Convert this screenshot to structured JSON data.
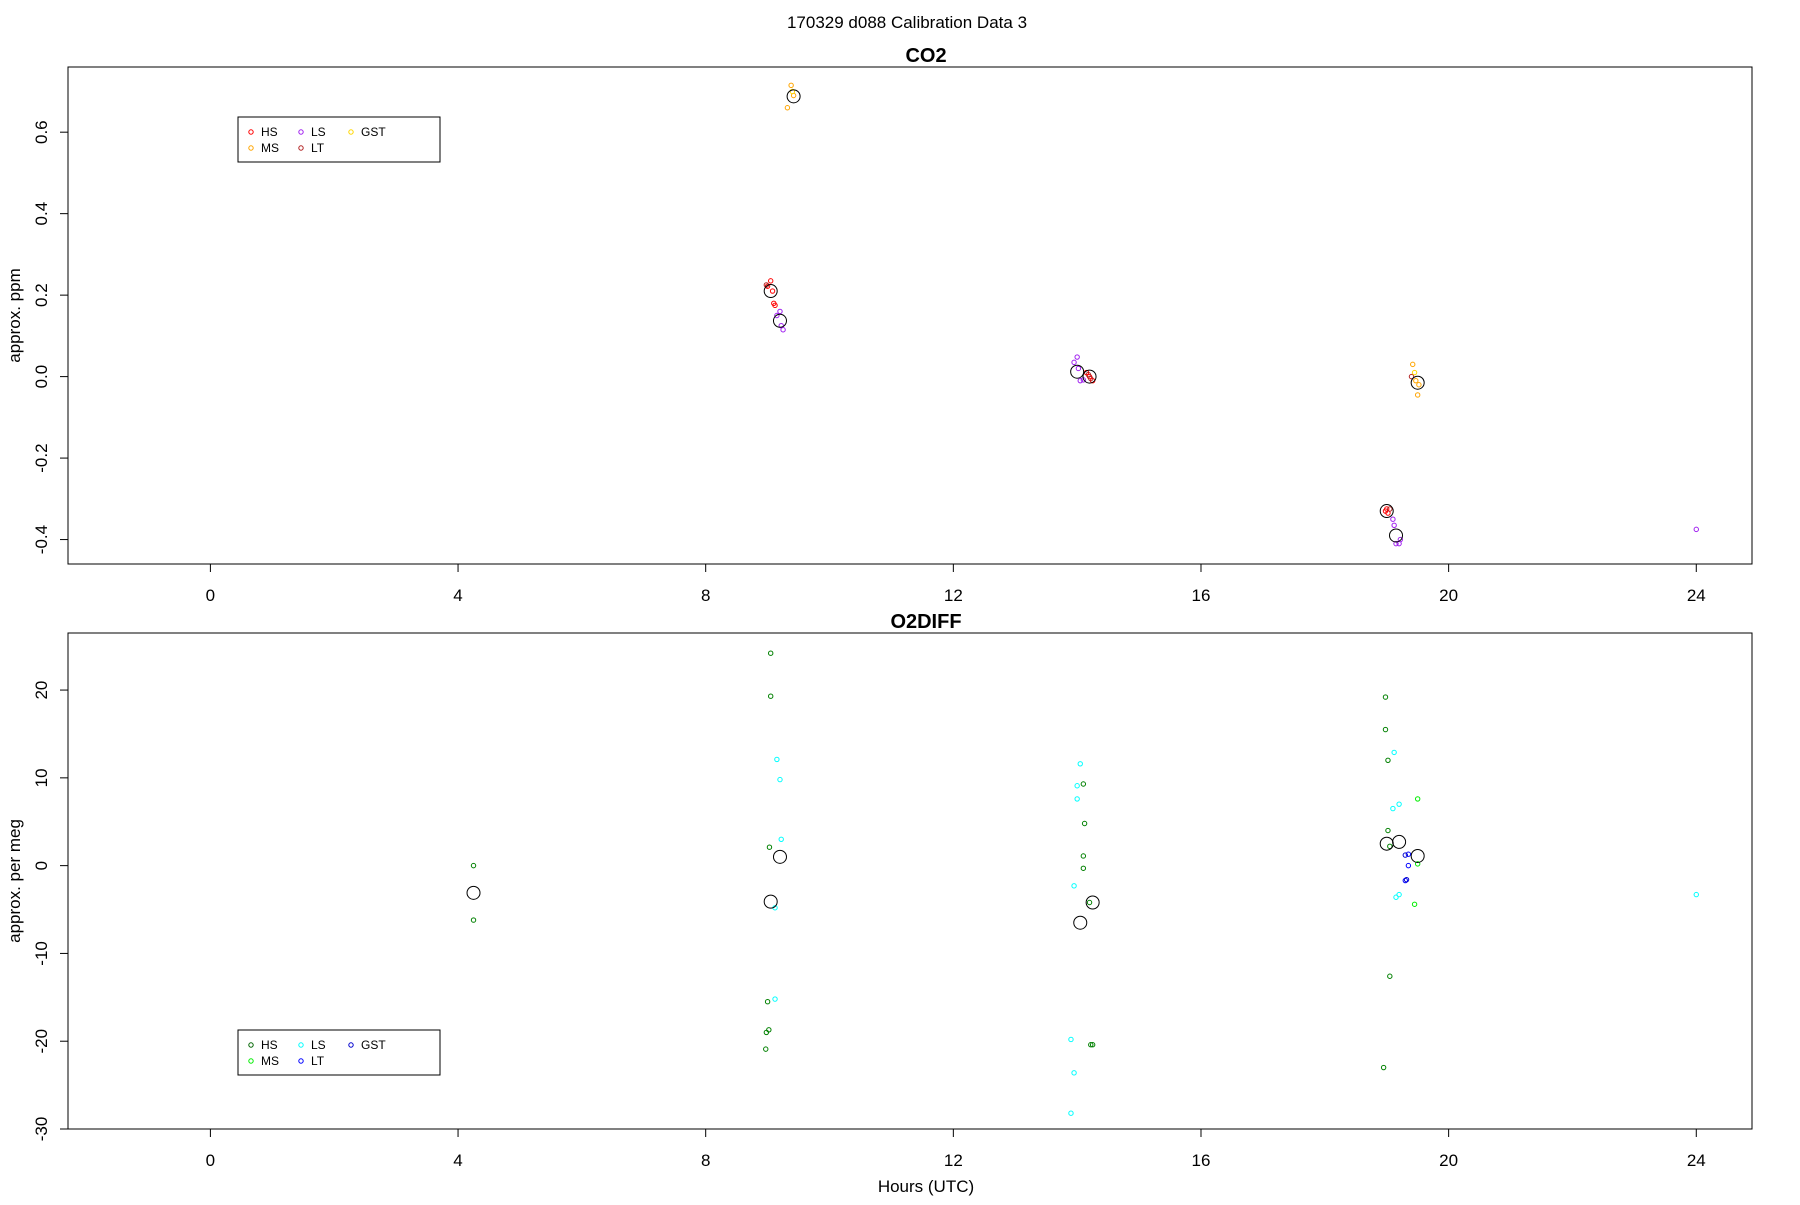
{
  "figure": {
    "title": "170329   d088   Calibration Data 3"
  },
  "chart_data": [
    {
      "type": "scatter",
      "title": "CO2",
      "xlabel": "",
      "ylabel": "approx. ppm",
      "xlim": [
        -2.3,
        24.9
      ],
      "ylim": [
        -0.46,
        0.76
      ],
      "xticks": [
        0,
        4,
        8,
        12,
        16,
        20,
        24
      ],
      "yticks": [
        -0.4,
        -0.2,
        0.0,
        0.2,
        0.4,
        0.6
      ],
      "ytick_labels": [
        "-0.4",
        "-0.2",
        "0.0",
        "0.2",
        "0.4",
        "0.6"
      ],
      "legend": {
        "placement": "top-left",
        "entries": [
          {
            "label": "HS",
            "color": "#ff0000"
          },
          {
            "label": "MS",
            "color": "#ffa500"
          },
          {
            "label": "LS",
            "color": "#a020f0"
          },
          {
            "label": "LT",
            "color": "#b22222"
          },
          {
            "label": "GST",
            "color": "#ffd700"
          }
        ]
      },
      "series": [
        {
          "name": "HS",
          "color": "#ff0000",
          "points": [
            [
              9.0,
              0.222
            ],
            [
              9.05,
              0.235
            ],
            [
              9.08,
              0.21
            ],
            [
              9.1,
              0.18
            ],
            [
              9.12,
              0.175
            ],
            [
              14.15,
              0.01
            ],
            [
              14.2,
              0.0
            ],
            [
              14.25,
              -0.01
            ],
            [
              18.98,
              -0.33
            ],
            [
              19.0,
              -0.325
            ],
            [
              19.02,
              -0.335
            ]
          ]
        },
        {
          "name": "MS",
          "color": "#ffa500",
          "points": [
            [
              9.32,
              0.66
            ],
            [
              9.38,
              0.715
            ],
            [
              9.42,
              0.69
            ],
            [
              19.42,
              0.03
            ],
            [
              19.47,
              -0.01
            ],
            [
              19.5,
              -0.045
            ],
            [
              19.52,
              -0.02
            ]
          ]
        },
        {
          "name": "LS",
          "color": "#a020f0",
          "points": [
            [
              9.15,
              0.15
            ],
            [
              9.2,
              0.16
            ],
            [
              9.22,
              0.125
            ],
            [
              9.25,
              0.115
            ],
            [
              13.95,
              0.035
            ],
            [
              14.0,
              0.048
            ],
            [
              14.02,
              0.02
            ],
            [
              14.05,
              -0.01
            ],
            [
              14.1,
              -0.008
            ],
            [
              19.1,
              -0.35
            ],
            [
              19.12,
              -0.365
            ],
            [
              19.15,
              -0.41
            ],
            [
              19.2,
              -0.41
            ],
            [
              19.22,
              -0.4
            ],
            [
              24.0,
              -0.375
            ]
          ]
        },
        {
          "name": "LT",
          "color": "#b22222",
          "points": [
            [
              8.98,
              0.225
            ],
            [
              14.18,
              0.005
            ],
            [
              14.22,
              -0.005
            ],
            [
              19.05,
              -0.325
            ],
            [
              19.4,
              0.0
            ]
          ]
        },
        {
          "name": "GST",
          "color": "#ffd700",
          "points": [
            [
              9.4,
              0.7
            ],
            [
              19.45,
              0.01
            ]
          ]
        }
      ],
      "means": [
        [
          9.05,
          0.21
        ],
        [
          9.2,
          0.137
        ],
        [
          9.42,
          0.688
        ],
        [
          14.0,
          0.012
        ],
        [
          14.2,
          0.0
        ],
        [
          19.0,
          -0.33
        ],
        [
          19.15,
          -0.39
        ],
        [
          19.5,
          -0.015
        ]
      ]
    },
    {
      "type": "scatter",
      "title": "O2DIFF",
      "xlabel": "Hours (UTC)",
      "ylabel": "approx. per meg",
      "xlim": [
        -2.3,
        24.9
      ],
      "ylim": [
        -30,
        26.5
      ],
      "xticks": [
        0,
        4,
        8,
        12,
        16,
        20,
        24
      ],
      "yticks": [
        -30,
        -20,
        -10,
        0,
        10,
        20
      ],
      "ytick_labels": [
        "-30",
        "-20",
        "-10",
        "0",
        "10",
        "20"
      ],
      "legend": {
        "placement": "bottom-left",
        "entries": [
          {
            "label": "HS",
            "color": "#006400"
          },
          {
            "label": "MS",
            "color": "#00ee00"
          },
          {
            "label": "LS",
            "color": "#00ffff"
          },
          {
            "label": "LT",
            "color": "#0000ff"
          },
          {
            "label": "GST",
            "color": "#0000cd"
          }
        ]
      },
      "series": [
        {
          "name": "HS",
          "color": "#008000",
          "points": [
            [
              4.25,
              0.0
            ],
            [
              4.25,
              -6.2
            ],
            [
              9.05,
              24.2
            ],
            [
              9.05,
              19.3
            ],
            [
              9.03,
              2.1
            ],
            [
              9.0,
              -15.5
            ],
            [
              9.02,
              -18.7
            ],
            [
              8.98,
              -19.0
            ],
            [
              8.97,
              -20.9
            ],
            [
              14.1,
              9.3
            ],
            [
              14.12,
              4.8
            ],
            [
              14.1,
              1.1
            ],
            [
              14.1,
              -0.3
            ],
            [
              14.2,
              -4.2
            ],
            [
              14.22,
              -20.4
            ],
            [
              14.25,
              -20.4
            ],
            [
              18.98,
              19.2
            ],
            [
              18.98,
              15.5
            ],
            [
              19.02,
              12.0
            ],
            [
              19.02,
              4.0
            ],
            [
              19.05,
              2.2
            ],
            [
              19.05,
              -12.6
            ],
            [
              18.95,
              -23.0
            ]
          ]
        },
        {
          "name": "MS",
          "color": "#00ee00",
          "points": [
            [
              19.5,
              7.6
            ],
            [
              19.5,
              0.2
            ],
            [
              19.45,
              -4.4
            ]
          ]
        },
        {
          "name": "LS",
          "color": "#00ffff",
          "points": [
            [
              9.15,
              12.1
            ],
            [
              9.2,
              9.8
            ],
            [
              9.22,
              3.0
            ],
            [
              9.12,
              -4.8
            ],
            [
              9.12,
              -15.2
            ],
            [
              14.05,
              11.6
            ],
            [
              14.0,
              9.1
            ],
            [
              14.0,
              7.6
            ],
            [
              13.95,
              -2.3
            ],
            [
              13.9,
              -19.8
            ],
            [
              13.95,
              -23.6
            ],
            [
              13.9,
              -28.2
            ],
            [
              19.12,
              12.9
            ],
            [
              19.2,
              7.0
            ],
            [
              19.1,
              6.5
            ],
            [
              19.2,
              -3.3
            ],
            [
              19.15,
              -3.6
            ],
            [
              24.0,
              -3.3
            ]
          ]
        },
        {
          "name": "LT",
          "color": "#0000ff",
          "points": [
            [
              19.35,
              1.3
            ],
            [
              19.35,
              0.0
            ],
            [
              19.3,
              -1.7
            ]
          ]
        },
        {
          "name": "GST",
          "color": "#0000cd",
          "points": [
            [
              19.3,
              1.2
            ],
            [
              19.32,
              -1.6
            ]
          ]
        }
      ],
      "means": [
        [
          4.25,
          -3.1
        ],
        [
          9.2,
          1.0
        ],
        [
          9.05,
          -4.1
        ],
        [
          14.25,
          -4.2
        ],
        [
          14.05,
          -6.5
        ],
        [
          19.0,
          2.5
        ],
        [
          19.2,
          2.7
        ],
        [
          19.5,
          1.1
        ]
      ]
    }
  ]
}
